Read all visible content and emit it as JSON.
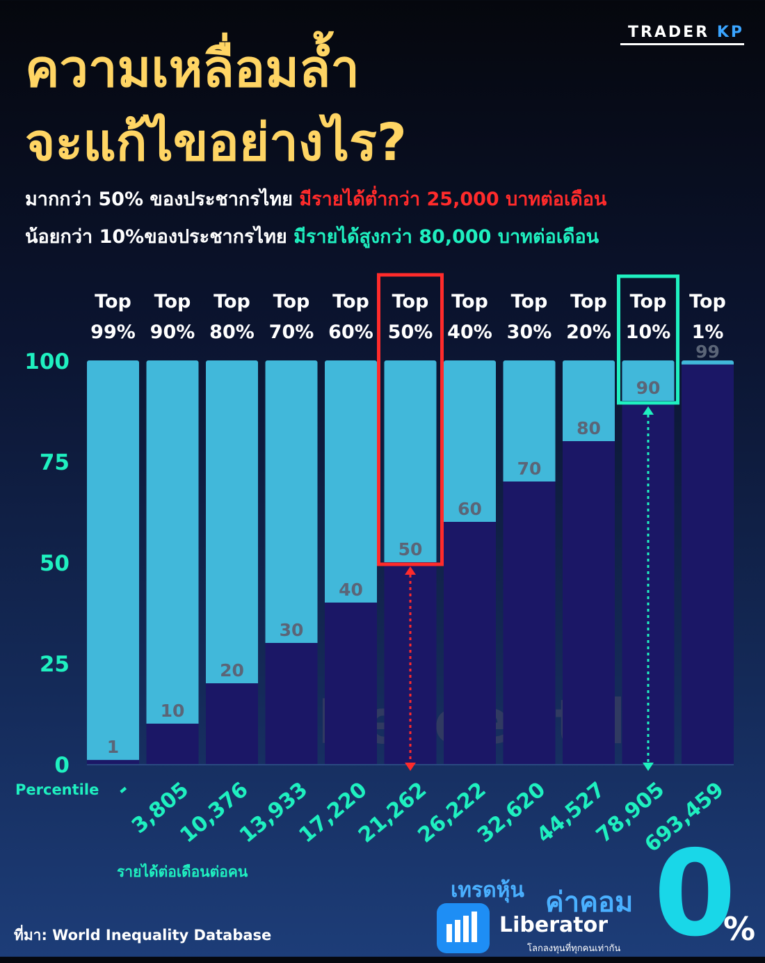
{
  "brand": {
    "name_main": "TRADER",
    "name_accent": "KP"
  },
  "title": {
    "line1": "ความเหลื่อมล้ำ",
    "line2": "จะแก้ไขอย่างไร?"
  },
  "subtitle": {
    "line1_white": "มากกว่า 50% ของประชากรไทย ",
    "line1_red": "มีรายได้ต่ำกว่า 25,000 บาทต่อเดือน",
    "line2_white": "น้อยกว่า 10%ของประชากรไทย ",
    "line2_green": "มีรายได้สูงกว่า 80,000 บาทต่อเดือน"
  },
  "colors": {
    "title": "#ffd564",
    "bar_light": "#41b8da",
    "bar_dark": "#1b1766",
    "axis_text": "#1ff0c0",
    "highlight_red": "#ff2b2b",
    "highlight_green": "#1ff0c0"
  },
  "chart_data": {
    "type": "bar",
    "top_labels_line1": [
      "Top",
      "Top",
      "Top",
      "Top",
      "Top",
      "Top",
      "Top",
      "Top",
      "Top",
      "Top",
      "Top"
    ],
    "top_labels_line2": [
      "99%",
      "90%",
      "80%",
      "70%",
      "60%",
      "50%",
      "40%",
      "30%",
      "20%",
      "10%",
      "1%"
    ],
    "values": [
      1,
      10,
      20,
      30,
      40,
      50,
      60,
      70,
      80,
      90,
      99
    ],
    "income_labels": [
      "-",
      "3,805",
      "10,376",
      "13,933",
      "17,220",
      "21,262",
      "26,222",
      "32,620",
      "44,527",
      "78,905",
      "693,459"
    ],
    "yticks": [
      "0",
      "25",
      "50",
      "75",
      "100"
    ],
    "ylim": [
      0,
      100
    ],
    "xlabel": "รายได้ต่อเดือนต่อคน",
    "ylabel": "Percentile",
    "watermark": "Percentile",
    "highlight_red_index": 5,
    "highlight_green_index": 9
  },
  "source": "ที่มา: World Inequality Database",
  "ad": {
    "tag": "เทรดหุ้น",
    "kom": "ค่าคอม",
    "zero": "0",
    "pct": "%",
    "name": "Liberator",
    "slogan": "โลกลงทุนที่ทุกคนเท่ากัน"
  }
}
